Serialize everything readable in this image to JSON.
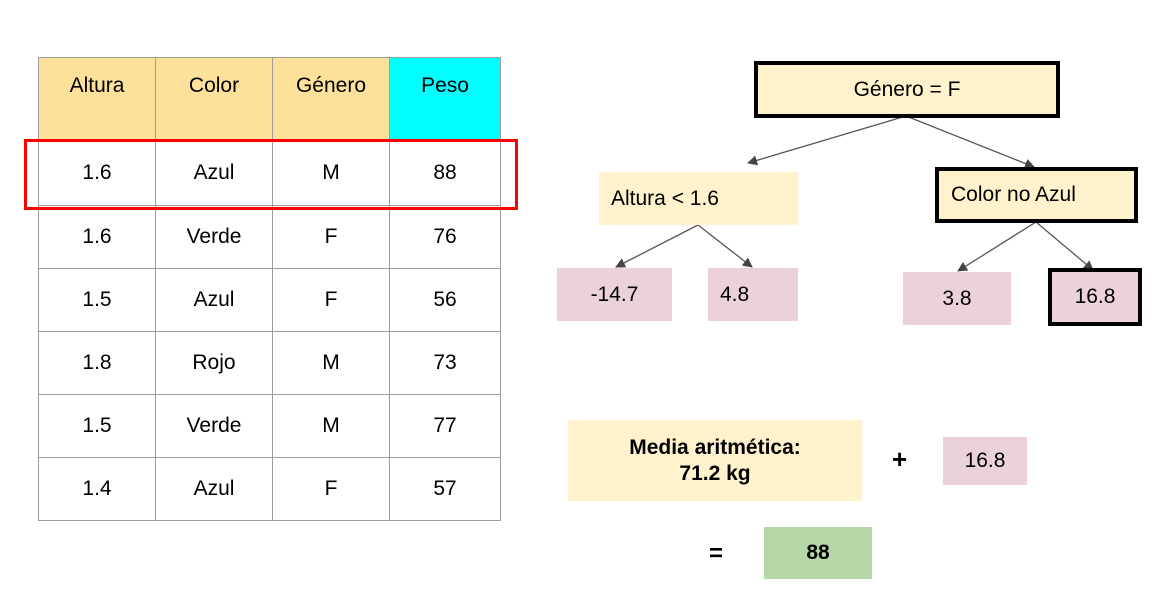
{
  "table": {
    "headers": [
      "Altura",
      "Color",
      "Género",
      "Peso"
    ],
    "rows": [
      [
        "1.6",
        "Azul",
        "M",
        "88"
      ],
      [
        "1.6",
        "Verde",
        "F",
        "76"
      ],
      [
        "1.5",
        "Azul",
        "F",
        "56"
      ],
      [
        "1.8",
        "Rojo",
        "M",
        "73"
      ],
      [
        "1.5",
        "Verde",
        "M",
        "77"
      ],
      [
        "1.4",
        "Azul",
        "F",
        "57"
      ]
    ],
    "highlighted_row": 0
  },
  "tree": {
    "root": "Género = F",
    "left_split": "Altura < 1.6",
    "right_split": "Color no Azul",
    "leaves": [
      "-14.7",
      "4.8",
      "3.8",
      "16.8"
    ]
  },
  "prediction": {
    "mean_label": "Media aritmética:",
    "mean_value": "71.2 kg",
    "plus": "+",
    "leaf_value": "16.8",
    "equals": "=",
    "result": "88"
  },
  "colors": {
    "header": "#fde19a",
    "target_header": "#00ffff",
    "highlight": "#ff0000",
    "node": "#fff2cc",
    "leaf": "#ead1dc",
    "result": "#b6d7a8"
  }
}
